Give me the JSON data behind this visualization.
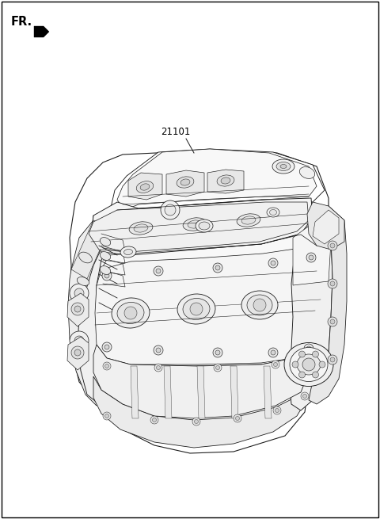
{
  "title": "",
  "background_color": "#ffffff",
  "fr_label": "FR.",
  "part_number": "21101",
  "fig_width": 4.8,
  "fig_height": 6.55,
  "dpi": 100,
  "lc": "#1a1a1a",
  "lw": 0.65,
  "label_fontsize": 8.5,
  "fr_fontsize": 10.5
}
